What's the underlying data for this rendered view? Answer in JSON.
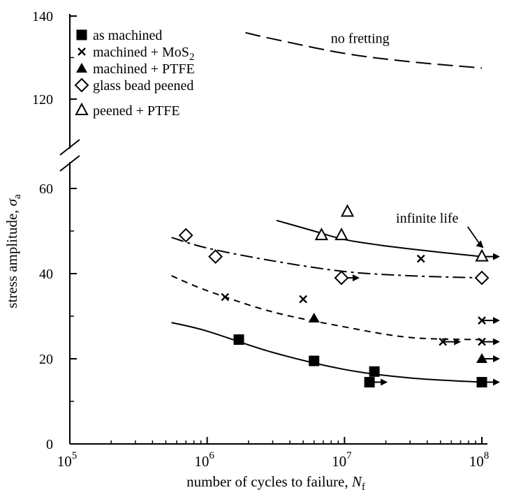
{
  "chart_data": {
    "type": "scatter",
    "title": "",
    "xlabel": "number of cycles to failure, ",
    "xlabel_symbol": "N",
    "xlabel_subscript": "f",
    "ylabel": "stress amplitude, ",
    "ylabel_symbol": "σ",
    "ylabel_subscript": "a",
    "x_scale": "log",
    "xlim": [
      100000,
      100000000
    ],
    "x_ticks": [
      {
        "value": 100000,
        "base": "10",
        "exp": "5"
      },
      {
        "value": 1000000,
        "base": "10",
        "exp": "6"
      },
      {
        "value": 10000000,
        "base": "10",
        "exp": "7"
      },
      {
        "value": 100000000,
        "base": "10",
        "exp": "8"
      }
    ],
    "y_axis_break": true,
    "y_segments": [
      {
        "range": [
          0,
          65
        ],
        "ticks": [
          0,
          20,
          40,
          60
        ]
      },
      {
        "range": [
          110,
          143
        ],
        "ticks": [
          120,
          140
        ]
      }
    ],
    "legend_position": "top-left",
    "series": [
      {
        "name": "as machined",
        "marker": "filled-square",
        "points": [
          [
            1700000,
            24.5
          ],
          [
            6000000,
            19.5
          ],
          [
            15200000,
            14.5
          ],
          [
            16500000,
            17
          ],
          [
            100000000,
            14.5
          ]
        ],
        "runouts": [
          [
            15200000,
            14.5
          ],
          [
            100000000,
            14.5
          ]
        ]
      },
      {
        "name": "machined + MoS",
        "name_subscript": "2",
        "marker": "x",
        "points": [
          [
            1350000,
            34.5
          ],
          [
            5000000,
            34
          ],
          [
            36000000,
            43.5
          ],
          [
            52000000,
            24
          ],
          [
            100000000,
            29
          ],
          [
            100000000,
            24
          ]
        ],
        "runouts": [
          [
            52000000,
            24
          ],
          [
            100000000,
            29
          ],
          [
            100000000,
            24
          ]
        ]
      },
      {
        "name": "machined + PTFE",
        "marker": "filled-triangle",
        "points": [
          [
            6000000,
            29.5
          ],
          [
            100000000,
            20
          ]
        ],
        "runouts": [
          [
            100000000,
            20
          ]
        ]
      },
      {
        "name": "glass bead peened",
        "marker": "open-diamond",
        "points": [
          [
            700000,
            49
          ],
          [
            1150000,
            44
          ],
          [
            9500000,
            39
          ],
          [
            100000000,
            39
          ]
        ],
        "runouts": [
          [
            9500000,
            39
          ]
        ]
      },
      {
        "name": "peened + PTFE",
        "marker": "open-triangle",
        "points": [
          [
            6800000,
            49
          ],
          [
            9500000,
            49
          ],
          [
            10500000,
            54.5
          ],
          [
            100000000,
            44
          ]
        ],
        "runouts": [
          [
            100000000,
            44
          ]
        ]
      }
    ],
    "curves": [
      {
        "style": "solid",
        "points": [
          [
            550000,
            28.5
          ],
          [
            1000000,
            26.5
          ],
          [
            3000000,
            21.5
          ],
          [
            10000000,
            17.5
          ],
          [
            30000000,
            15.5
          ],
          [
            100000000,
            14.5
          ]
        ]
      },
      {
        "style": "dashed",
        "points": [
          [
            550000,
            39.5
          ],
          [
            1000000,
            36
          ],
          [
            3000000,
            31
          ],
          [
            10000000,
            27.5
          ],
          [
            30000000,
            25
          ],
          [
            100000000,
            24.5
          ]
        ]
      },
      {
        "style": "dashdot",
        "points": [
          [
            550000,
            48.5
          ],
          [
            1000000,
            46
          ],
          [
            3000000,
            43
          ],
          [
            10000000,
            40.5
          ],
          [
            30000000,
            39.5
          ],
          [
            100000000,
            39
          ]
        ]
      },
      {
        "style": "solid",
        "points": [
          [
            3200000,
            52.5
          ],
          [
            6000000,
            50
          ],
          [
            10000000,
            48
          ],
          [
            20000000,
            46.5
          ],
          [
            50000000,
            45
          ],
          [
            100000000,
            44
          ]
        ]
      },
      {
        "style": "long-dashed",
        "points": [
          [
            1900000,
            136
          ],
          [
            3000000,
            134.5
          ],
          [
            10000000,
            131
          ],
          [
            30000000,
            129
          ],
          [
            100000000,
            127.5
          ]
        ]
      }
    ],
    "annotations": [
      {
        "text": "no fretting",
        "x": 13000000,
        "y": 133.5
      },
      {
        "text": "infinite life",
        "x": 40000000,
        "y": 52,
        "arrow_to": [
          103000000,
          46
        ]
      }
    ]
  }
}
